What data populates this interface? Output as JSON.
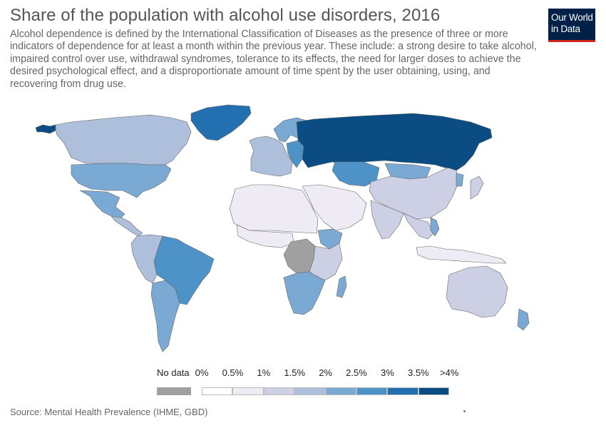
{
  "header": {
    "title": "Share of the population with alcohol use disorders, 2016",
    "subtitle": "Alcohol dependence is defined by the International Classification of Diseases as the presence of three or more indicators of dependence for at least a month within the previous year. These include: a strong desire to take alcohol, impaired control over use, withdrawal syndromes, tolerance to its effects, the need for larger doses to achieve the desired psychological effect, and a disproportionate amount of time spent by the user obtaining, using, and recovering from drug use."
  },
  "logo": {
    "line1": "Our World",
    "line2": "in Data"
  },
  "legend": {
    "no_data_label": "No data",
    "no_data_color": "#a0a0a0",
    "bins": [
      {
        "label": "0%",
        "color": "#ffffff"
      },
      {
        "label": "0.5%",
        "color": "#eeebf5"
      },
      {
        "label": "1%",
        "color": "#cdcfe5"
      },
      {
        "label": "1.5%",
        "color": "#aebfdc"
      },
      {
        "label": "2%",
        "color": "#7aa9d3"
      },
      {
        "label": "2.5%",
        "color": "#4e93c8"
      },
      {
        "label": "3%",
        "color": "#2370b0"
      },
      {
        "label": "3.5%",
        "color": "#0b4d82"
      }
    ],
    "last_label": ">4%"
  },
  "regions": [
    {
      "name": "Alaska",
      "color": "#0b4d82"
    },
    {
      "name": "Canada",
      "color": "#aebfdc"
    },
    {
      "name": "Greenland",
      "color": "#2370b0"
    },
    {
      "name": "United States",
      "color": "#7aa9d3"
    },
    {
      "name": "Mexico",
      "color": "#7aa9d3"
    },
    {
      "name": "Central America",
      "color": "#aebfdc"
    },
    {
      "name": "Brazil",
      "color": "#4e93c8"
    },
    {
      "name": "Andean South America",
      "color": "#aebfdc"
    },
    {
      "name": "Southern Cone",
      "color": "#7aa9d3"
    },
    {
      "name": "Western Europe",
      "color": "#aebfdc"
    },
    {
      "name": "Nordic countries",
      "color": "#7aa9d3"
    },
    {
      "name": "Eastern Europe",
      "color": "#4e93c8"
    },
    {
      "name": "Russia",
      "color": "#0b4d82"
    },
    {
      "name": "Kazakhstan",
      "color": "#4e93c8"
    },
    {
      "name": "Mongolia",
      "color": "#7aa9d3"
    },
    {
      "name": "China",
      "color": "#cdcfe5"
    },
    {
      "name": "Korea",
      "color": "#7aa9d3"
    },
    {
      "name": "Japan",
      "color": "#cdcfe5"
    },
    {
      "name": "Middle East",
      "color": "#eeebf5"
    },
    {
      "name": "North Africa",
      "color": "#eeebf5"
    },
    {
      "name": "West Africa",
      "color": "#eeebf5"
    },
    {
      "name": "DR Congo",
      "color": "#a0a0a0"
    },
    {
      "name": "Ethiopia",
      "color": "#7aa9d3"
    },
    {
      "name": "East Africa",
      "color": "#cdcfe5"
    },
    {
      "name": "Southern Africa",
      "color": "#7aa9d3"
    },
    {
      "name": "Madagascar",
      "color": "#7aa9d3"
    },
    {
      "name": "India",
      "color": "#cdcfe5"
    },
    {
      "name": "Southeast Asia",
      "color": "#cdcfe5"
    },
    {
      "name": "Vietnam",
      "color": "#7aa9d3"
    },
    {
      "name": "Indonesia",
      "color": "#eeebf5"
    },
    {
      "name": "Australia",
      "color": "#cdcfe5"
    },
    {
      "name": "New Zealand",
      "color": "#7aa9d3"
    }
  ],
  "source": "Source: Mental Health Prevalence (IHME, GBD)"
}
